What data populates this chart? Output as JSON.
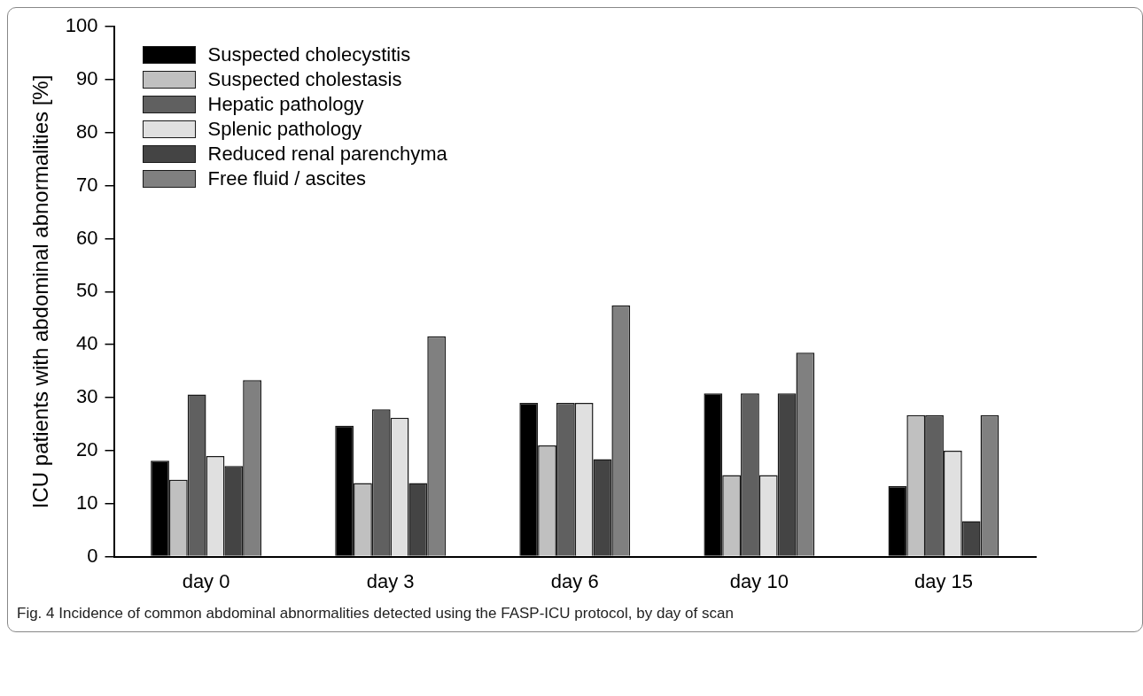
{
  "chart_data": {
    "type": "bar",
    "ylabel": "ICU patients with abdominal abnormalities [%]",
    "categories": [
      "day 0",
      "day 3",
      "day 6",
      "day 10",
      "day 15"
    ],
    "series": [
      {
        "name": "Suspected cholecystitis",
        "color": "#000000",
        "values": [
          18.1,
          24.7,
          29,
          30.8,
          13.3
        ]
      },
      {
        "name": "Suspected cholestasis",
        "color": "#c0c0c0",
        "values": [
          14.5,
          13.9,
          21,
          15.4,
          26.7
        ]
      },
      {
        "name": "Hepatic pathology",
        "color": "#606060",
        "values": [
          30.6,
          27.8,
          29,
          30.8,
          26.7
        ]
      },
      {
        "name": "Splenic pathology",
        "color": "#e0e0e0",
        "values": [
          19,
          26.2,
          29,
          15.4,
          20
        ]
      },
      {
        "name": "Reduced renal parenchyma",
        "color": "#444444",
        "values": [
          17.1,
          13.9,
          18.4,
          30.8,
          6.7
        ]
      },
      {
        "name": "Free fluid / ascites",
        "color": "#808080",
        "values": [
          33.3,
          41.6,
          47.4,
          38.5,
          26.7
        ]
      }
    ],
    "ylim": [
      0,
      100
    ],
    "yticks": [
      0,
      10,
      20,
      30,
      40,
      50,
      60,
      70,
      80,
      90,
      100
    ],
    "grid": false,
    "legend": "top left",
    "annotations": [
      "Fig. 4  Incidence of common abdominal abnormalities detected using the FASP-ICU protocol, by day of scan"
    ]
  }
}
